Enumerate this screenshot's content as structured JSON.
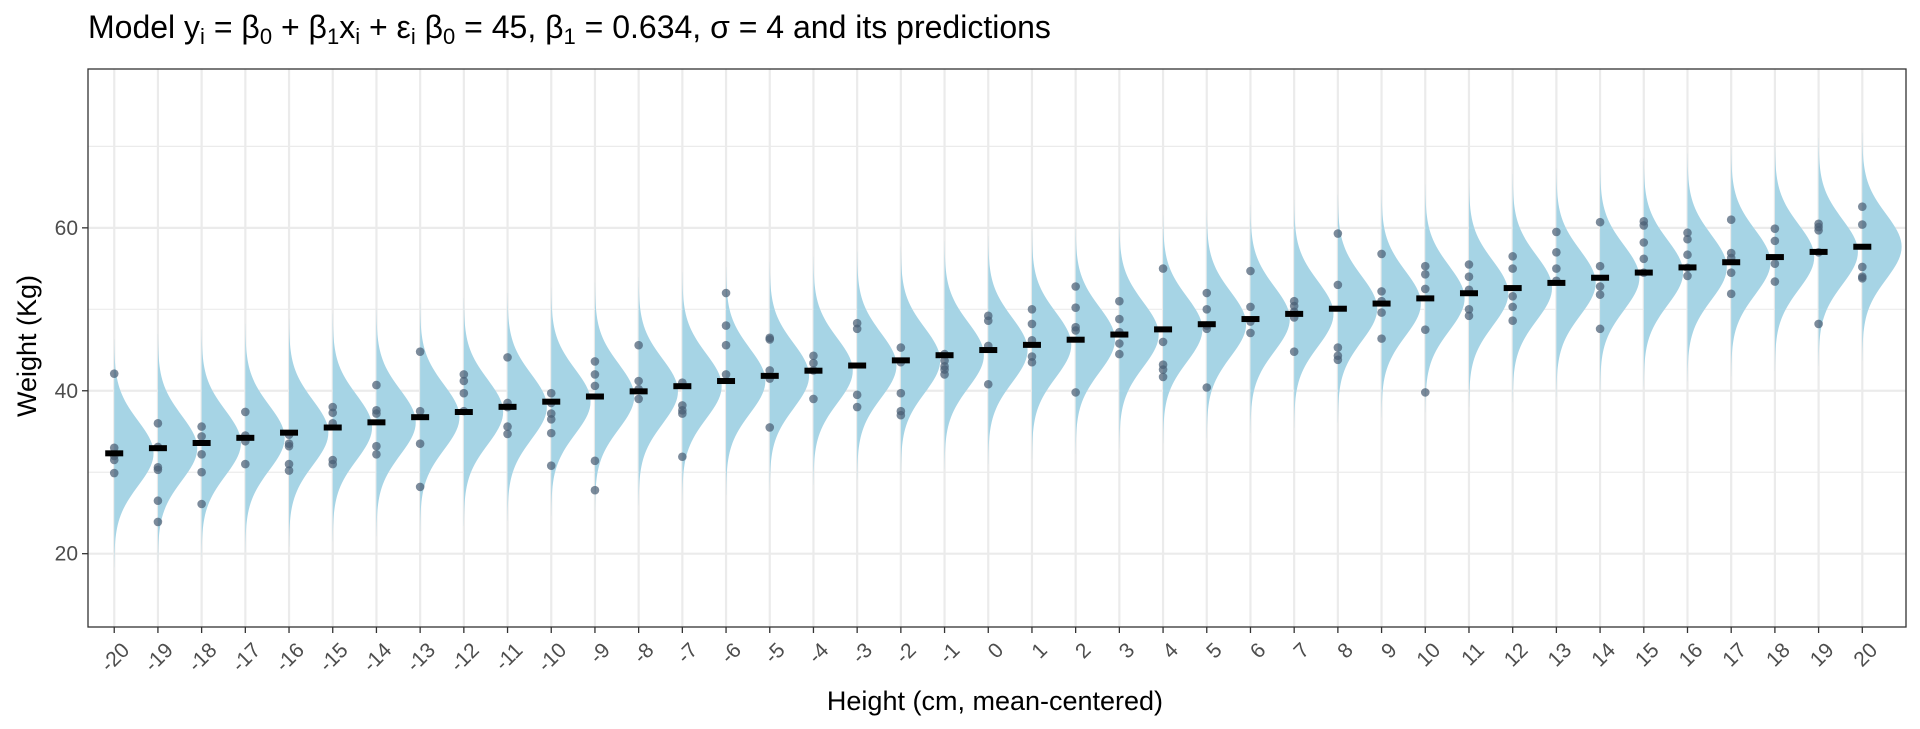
{
  "chart_data": {
    "type": "scatter",
    "title": {
      "parts": [
        {
          "t": "Model y"
        },
        {
          "t": "i",
          "s": "sub"
        },
        {
          "t": " = β"
        },
        {
          "t": "0",
          "s": "sub"
        },
        {
          "t": " + β"
        },
        {
          "t": "1",
          "s": "sub"
        },
        {
          "t": "x"
        },
        {
          "t": "i",
          "s": "sub"
        },
        {
          "t": " + ε"
        },
        {
          "t": "i",
          "s": "sub"
        },
        {
          "t": "  β"
        },
        {
          "t": "0",
          "s": "sub"
        },
        {
          "t": " = 45, β"
        },
        {
          "t": "1",
          "s": "sub"
        },
        {
          "t": " = 0.634, σ = 4 and its predictions"
        }
      ]
    },
    "xlabel": "Height (cm, mean-centered)",
    "ylabel": "Weight (Kg)",
    "xlim": [
      -20.6,
      21.0
    ],
    "ylim": [
      11,
      79.5
    ],
    "y_ticks": [
      20,
      40,
      60
    ],
    "x_ticks": [
      "-20",
      "-19",
      "-18",
      "-17",
      "-16",
      "-15",
      "-14",
      "-13",
      "-12",
      "-11",
      "-10",
      "-9",
      "-8",
      "-7",
      "-6",
      "-5",
      "-4",
      "-3",
      "-2",
      "-1",
      "0",
      "1",
      "2",
      "3",
      "4",
      "5",
      "6",
      "7",
      "8",
      "9",
      "10",
      "11",
      "12",
      "13",
      "14",
      "15",
      "16",
      "17",
      "18",
      "19",
      "20"
    ],
    "model": {
      "beta0": 45,
      "beta1": 0.634,
      "sigma": 4
    },
    "grid": true,
    "legend": "none",
    "colors": {
      "density": "#a6d4e5",
      "points": "#4a5e75",
      "mean": "#000000",
      "panel_border": "#333333",
      "grid": "#ebebeb"
    },
    "points": [
      {
        "x": -20,
        "y": [
          42.1,
          33.0,
          32.0,
          31.5,
          29.9
        ]
      },
      {
        "x": -19,
        "y": [
          36.0,
          33.1,
          30.6,
          30.3,
          26.5,
          23.9
        ]
      },
      {
        "x": -18,
        "y": [
          35.6,
          34.4,
          32.2,
          30.0,
          26.1
        ]
      },
      {
        "x": -17,
        "y": [
          37.4,
          34.5,
          33.8,
          31.0
        ]
      },
      {
        "x": -16,
        "y": [
          34.6,
          33.5,
          33.2,
          31.0,
          30.2
        ]
      },
      {
        "x": -15,
        "y": [
          38.0,
          37.3,
          36.0,
          31.5,
          31.0
        ]
      },
      {
        "x": -14,
        "y": [
          40.7,
          37.6,
          37.2,
          33.2,
          32.2
        ]
      },
      {
        "x": -13,
        "y": [
          44.8,
          37.5,
          33.5,
          28.2
        ]
      },
      {
        "x": -12,
        "y": [
          42.0,
          41.2,
          39.7,
          37.5
        ]
      },
      {
        "x": -11,
        "y": [
          44.1,
          38.5,
          38.0,
          35.6,
          34.7
        ]
      },
      {
        "x": -10,
        "y": [
          39.7,
          38.5,
          37.2,
          36.5,
          34.8,
          30.8
        ]
      },
      {
        "x": -9,
        "y": [
          43.6,
          42.0,
          40.6,
          31.4,
          27.8
        ]
      },
      {
        "x": -8,
        "y": [
          45.6,
          41.2,
          40.2,
          39.0
        ]
      },
      {
        "x": -7,
        "y": [
          41.0,
          38.2,
          37.6,
          37.2,
          31.9
        ]
      },
      {
        "x": -6,
        "y": [
          52.0,
          48.0,
          45.6,
          42.0
        ]
      },
      {
        "x": -5,
        "y": [
          46.5,
          46.3,
          42.5,
          41.5,
          35.5
        ]
      },
      {
        "x": -4,
        "y": [
          44.3,
          43.4,
          42.5,
          39.0
        ]
      },
      {
        "x": -3,
        "y": [
          48.3,
          47.6,
          39.5,
          38.0
        ]
      },
      {
        "x": -2,
        "y": [
          45.3,
          43.5,
          39.7,
          37.5,
          37.0
        ]
      },
      {
        "x": -1,
        "y": [
          44.5,
          43.7,
          43.0,
          42.6,
          42.0
        ]
      },
      {
        "x": 0,
        "y": [
          49.2,
          48.6,
          45.5,
          40.8
        ]
      },
      {
        "x": 1,
        "y": [
          50.0,
          48.2,
          46.2,
          44.2,
          43.5
        ]
      },
      {
        "x": 2,
        "y": [
          52.8,
          50.2,
          47.8,
          47.4,
          39.8
        ]
      },
      {
        "x": 3,
        "y": [
          51.0,
          48.8,
          47.2,
          45.8,
          44.5
        ]
      },
      {
        "x": 4,
        "y": [
          55.0,
          46.0,
          43.2,
          42.6,
          41.7
        ]
      },
      {
        "x": 5,
        "y": [
          52.0,
          50.0,
          48.0,
          47.6,
          40.4
        ]
      },
      {
        "x": 6,
        "y": [
          54.7,
          50.3,
          48.5,
          47.1
        ]
      },
      {
        "x": 7,
        "y": [
          51.0,
          50.4,
          49.7,
          49.0,
          44.8
        ]
      },
      {
        "x": 8,
        "y": [
          59.3,
          53.0,
          45.3,
          44.3,
          43.8
        ]
      },
      {
        "x": 9,
        "y": [
          56.8,
          52.2,
          51.0,
          49.6,
          46.4
        ]
      },
      {
        "x": 10,
        "y": [
          55.3,
          54.3,
          52.5,
          47.5,
          39.8
        ]
      },
      {
        "x": 11,
        "y": [
          55.5,
          54.0,
          52.4,
          50.0,
          49.2
        ]
      },
      {
        "x": 12,
        "y": [
          56.5,
          55.0,
          51.6,
          50.3,
          48.6
        ]
      },
      {
        "x": 13,
        "y": [
          59.5,
          57.0,
          55.0,
          53.5
        ]
      },
      {
        "x": 14,
        "y": [
          60.7,
          55.3,
          52.8,
          51.8,
          47.6
        ]
      },
      {
        "x": 15,
        "y": [
          60.8,
          60.3,
          58.2,
          56.2,
          54.5
        ]
      },
      {
        "x": 16,
        "y": [
          59.4,
          58.6,
          56.7,
          55.1,
          54.1
        ]
      },
      {
        "x": 17,
        "y": [
          61.0,
          56.9,
          56.3,
          54.5,
          51.9
        ]
      },
      {
        "x": 18,
        "y": [
          59.9,
          58.4,
          55.6,
          53.4
        ]
      },
      {
        "x": 19,
        "y": [
          60.5,
          60.1,
          59.7,
          57.0,
          48.2
        ]
      },
      {
        "x": 20,
        "y": [
          62.6,
          60.4,
          55.2,
          54.0,
          53.8
        ]
      }
    ]
  }
}
